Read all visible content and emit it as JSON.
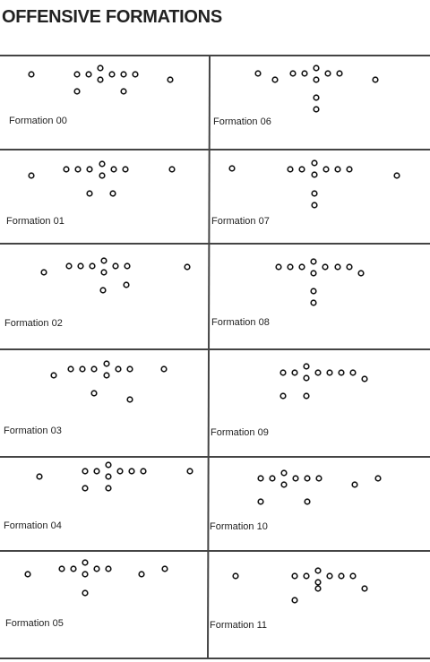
{
  "title": "OFFENSIVE FORMATIONS",
  "formations": [
    {
      "label": "Formation 00"
    },
    {
      "label": "Formation 01"
    },
    {
      "label": "Formation 02"
    },
    {
      "label": "Formation 03"
    },
    {
      "label": "Formation 04"
    },
    {
      "label": "Formation 05"
    },
    {
      "label": "Formation 06"
    },
    {
      "label": "Formation 07"
    },
    {
      "label": "Formation 08"
    },
    {
      "label": "Formation 09"
    },
    {
      "label": "Formation 10"
    },
    {
      "label": "Formation 11"
    }
  ]
}
